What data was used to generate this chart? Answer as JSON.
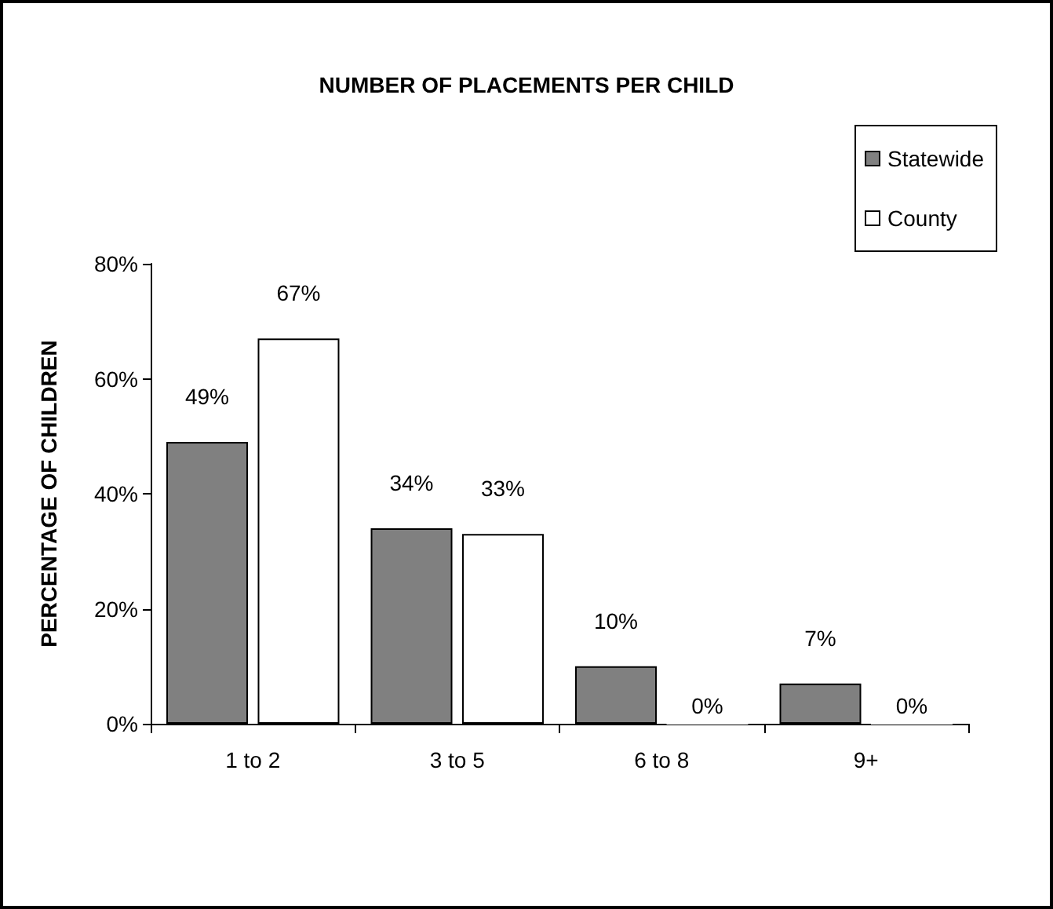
{
  "chart_data": {
    "type": "bar",
    "title": "NUMBER OF PLACEMENTS PER CHILD",
    "ylabel": "PERCENTAGE OF CHILDREN",
    "categories": [
      "1 to 2",
      "3 to 5",
      "6 to 8",
      "9+"
    ],
    "series": [
      {
        "name": "Statewide",
        "color": "#808080",
        "values": [
          49,
          34,
          10,
          7
        ],
        "value_labels": [
          "49%",
          "34%",
          "10%",
          "7%"
        ]
      },
      {
        "name": "County",
        "color": "#ffffff",
        "values": [
          67,
          33,
          0,
          0
        ],
        "value_labels": [
          "67%",
          "33%",
          "0%",
          "0%"
        ]
      }
    ],
    "ylim": [
      0,
      80
    ],
    "yticks": [
      {
        "value": 0,
        "label": "0%"
      },
      {
        "value": 20,
        "label": "20%"
      },
      {
        "value": 40,
        "label": "40%"
      },
      {
        "value": 60,
        "label": "60%"
      },
      {
        "value": 80,
        "label": "80%"
      }
    ],
    "grid": false,
    "legend": "top right"
  }
}
